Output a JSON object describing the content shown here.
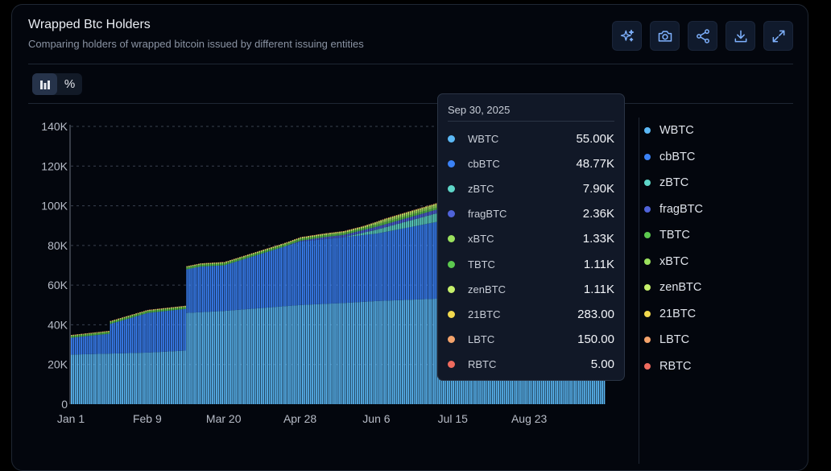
{
  "header": {
    "title": "Wrapped Btc Holders",
    "subtitle": "Comparing holders of wrapped bitcoin issued by different issuing entities"
  },
  "toolbar": {
    "buttons": [
      {
        "name": "ai-insights-button",
        "icon": "sparkles-icon"
      },
      {
        "name": "screenshot-button",
        "icon": "camera-icon"
      },
      {
        "name": "share-button",
        "icon": "share-icon"
      },
      {
        "name": "download-button",
        "icon": "download-icon"
      },
      {
        "name": "fullscreen-button",
        "icon": "expand-icon"
      }
    ]
  },
  "view_toggle": {
    "bars_icon": "bar-chart-icon",
    "percent_label": "%",
    "active": "bars"
  },
  "tooltip": {
    "date": "Sep 30, 2025",
    "rows": [
      {
        "name": "WBTC",
        "value": "55.00K",
        "color": "#5bb8f5"
      },
      {
        "name": "cbBTC",
        "value": "48.77K",
        "color": "#3b82f6"
      },
      {
        "name": "zBTC",
        "value": "7.90K",
        "color": "#5ed6c8"
      },
      {
        "name": "fragBTC",
        "value": "2.36K",
        "color": "#4f63d9"
      },
      {
        "name": "xBTC",
        "value": "1.33K",
        "color": "#9be15d"
      },
      {
        "name": "TBTC",
        "value": "1.11K",
        "color": "#5cc94f"
      },
      {
        "name": "zenBTC",
        "value": "1.11K",
        "color": "#c6f06b"
      },
      {
        "name": "21BTC",
        "value": "283.00",
        "color": "#f2d94e"
      },
      {
        "name": "LBTC",
        "value": "150.00",
        "color": "#f4a36b"
      },
      {
        "name": "RBTC",
        "value": "5.00",
        "color": "#ef6b5e"
      }
    ]
  },
  "legend": [
    {
      "name": "WBTC",
      "color": "#5bb8f5"
    },
    {
      "name": "cbBTC",
      "color": "#3b82f6"
    },
    {
      "name": "zBTC",
      "color": "#5ed6c8"
    },
    {
      "name": "fragBTC",
      "color": "#4f63d9"
    },
    {
      "name": "TBTC",
      "color": "#5cc94f"
    },
    {
      "name": "xBTC",
      "color": "#9be15d"
    },
    {
      "name": "zenBTC",
      "color": "#c6f06b"
    },
    {
      "name": "21BTC",
      "color": "#f2d94e"
    },
    {
      "name": "LBTC",
      "color": "#f4a36b"
    },
    {
      "name": "RBTC",
      "color": "#ef6b5e"
    }
  ],
  "chart_data": {
    "type": "bar",
    "stacked": true,
    "x_start": "2025-01-01",
    "x_end": "2025-09-30",
    "x_ticks": [
      "Jan 1",
      "Feb 9",
      "Mar 20",
      "Apr 28",
      "Jun 6",
      "Jul 15",
      "Aug 23"
    ],
    "y_ticks": [
      "0",
      "20K",
      "40K",
      "60K",
      "80K",
      "100K",
      "120K",
      "140K"
    ],
    "ylim": [
      0,
      140000
    ],
    "grid": true,
    "legend_position": "right",
    "series": [
      {
        "name": "WBTC",
        "color": "#5bb8f5",
        "points": [
          [
            "2025-01-01",
            25000
          ],
          [
            "2025-02-09",
            26000
          ],
          [
            "2025-02-28",
            27000
          ],
          [
            "2025-03-01",
            46000
          ],
          [
            "2025-03-20",
            47000
          ],
          [
            "2025-04-28",
            50000
          ],
          [
            "2025-05-20",
            51000
          ],
          [
            "2025-06-06",
            52000
          ],
          [
            "2025-07-15",
            53500
          ],
          [
            "2025-08-23",
            54500
          ],
          [
            "2025-09-30",
            55000
          ]
        ]
      },
      {
        "name": "cbBTC",
        "color": "#3b82f6",
        "points": [
          [
            "2025-01-01",
            8500
          ],
          [
            "2025-01-20",
            10000
          ],
          [
            "2025-01-21",
            15000
          ],
          [
            "2025-02-09",
            20000
          ],
          [
            "2025-02-28",
            21000
          ],
          [
            "2025-03-01",
            22000
          ],
          [
            "2025-03-08",
            23000
          ],
          [
            "2025-03-20",
            23000
          ],
          [
            "2025-04-28",
            32000
          ],
          [
            "2025-06-06",
            34000
          ],
          [
            "2025-07-15",
            40000
          ],
          [
            "2025-08-23",
            46000
          ],
          [
            "2025-09-30",
            48770
          ]
        ]
      },
      {
        "name": "zBTC",
        "color": "#5ed6c8",
        "points": [
          [
            "2025-01-01",
            0
          ],
          [
            "2025-05-20",
            0
          ],
          [
            "2025-06-06",
            2000
          ],
          [
            "2025-07-15",
            5000
          ],
          [
            "2025-08-23",
            7000
          ],
          [
            "2025-09-30",
            7900
          ]
        ]
      },
      {
        "name": "fragBTC",
        "color": "#4f63d9",
        "points": [
          [
            "2025-01-01",
            0
          ],
          [
            "2025-04-20",
            0
          ],
          [
            "2025-05-10",
            1000
          ],
          [
            "2025-06-06",
            1500
          ],
          [
            "2025-07-15",
            2000
          ],
          [
            "2025-09-30",
            2360
          ]
        ]
      },
      {
        "name": "TBTC",
        "color": "#5cc94f",
        "points": [
          [
            "2025-01-01",
            900
          ],
          [
            "2025-06-06",
            1000
          ],
          [
            "2025-09-30",
            1110
          ]
        ]
      },
      {
        "name": "xBTC",
        "color": "#9be15d",
        "points": [
          [
            "2025-01-01",
            0
          ],
          [
            "2025-05-30",
            0
          ],
          [
            "2025-06-10",
            800
          ],
          [
            "2025-07-15",
            1100
          ],
          [
            "2025-09-30",
            1330
          ]
        ]
      },
      {
        "name": "zenBTC",
        "color": "#c6f06b",
        "points": [
          [
            "2025-01-01",
            400
          ],
          [
            "2025-06-06",
            800
          ],
          [
            "2025-09-30",
            1110
          ]
        ]
      },
      {
        "name": "21BTC",
        "color": "#f2d94e",
        "points": [
          [
            "2025-01-01",
            0
          ],
          [
            "2025-05-01",
            0
          ],
          [
            "2025-06-06",
            150
          ],
          [
            "2025-09-30",
            283
          ]
        ]
      },
      {
        "name": "LBTC",
        "color": "#f4a36b",
        "points": [
          [
            "2025-01-01",
            50
          ],
          [
            "2025-06-06",
            100
          ],
          [
            "2025-09-30",
            150
          ]
        ]
      },
      {
        "name": "RBTC",
        "color": "#ef6b5e",
        "points": [
          [
            "2025-01-01",
            3
          ],
          [
            "2025-09-30",
            5
          ]
        ]
      }
    ]
  }
}
